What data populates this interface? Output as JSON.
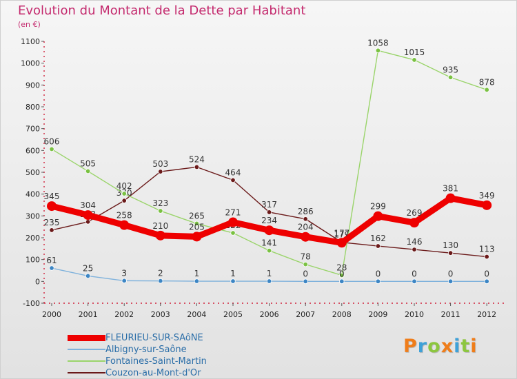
{
  "header": {
    "title": "Evolution du Montant de la Dette par Habitant",
    "subtitle": "(en €)"
  },
  "brand": {
    "text": "Proxiti",
    "letter_colors": [
      "#ef7d1a",
      "#3ea1d8",
      "#8cc63f",
      "#ef7d1a",
      "#3ea1d8",
      "#8cc63f",
      "#ef7d1a"
    ]
  },
  "chart_data": {
    "type": "line",
    "title": "Evolution du Montant de la Dette par Habitant",
    "subtitle": "(en €)",
    "xlabel": "",
    "ylabel": "",
    "x": [
      "2000",
      "2001",
      "2002",
      "2003",
      "2004",
      "2005",
      "2006",
      "2007",
      "2008",
      "2009",
      "2010",
      "2011",
      "2012"
    ],
    "ylim": [
      -100,
      1100
    ],
    "yticks": [
      -100,
      0,
      100,
      200,
      300,
      400,
      500,
      600,
      700,
      800,
      900,
      1000,
      1100
    ],
    "grid": false,
    "legend_position": "bottom-left",
    "series": [
      {
        "name": "Couzon-au-Mont-d'Or",
        "color": "#6b1a1a",
        "marker_color": "#6b1a1a",
        "emphasis": false,
        "values": [
          235,
          273,
          370,
          503,
          524,
          464,
          317,
          286,
          179,
          162,
          146,
          130,
          113
        ],
        "labels": [
          "235",
          "273",
          "370",
          "503",
          "524",
          "464",
          "317",
          "286",
          "179",
          "162",
          "146",
          "130",
          "113"
        ]
      },
      {
        "name": "Fontaines-Saint-Martin",
        "color": "#9ad46a",
        "marker_color": "#7ac142",
        "emphasis": false,
        "values": [
          606,
          505,
          402,
          323,
          265,
          222,
          141,
          78,
          28,
          1058,
          1015,
          935,
          878
        ],
        "labels": [
          "606",
          "505",
          "402",
          "323",
          "265",
          "222",
          "141",
          "78",
          "28",
          "1058",
          "1015",
          "935",
          "878"
        ]
      },
      {
        "name": "Albigny-sur-Saône",
        "color": "#7fb2dc",
        "marker_color": "#3d86c4",
        "emphasis": false,
        "values": [
          61,
          25,
          3,
          2,
          1,
          1,
          1,
          0,
          0,
          0,
          0,
          0,
          0
        ],
        "labels": [
          "61",
          "25",
          "3",
          "2",
          "1",
          "1",
          "1",
          "0",
          "0",
          "0",
          "0",
          "0",
          "0"
        ]
      },
      {
        "name": "FLEURIEU-SUR-SAôNE",
        "color": "#ee0000",
        "marker_color": "#ee0000",
        "emphasis": true,
        "values": [
          345,
          304,
          258,
          210,
          205,
          271,
          234,
          204,
          177,
          299,
          269,
          381,
          349
        ],
        "labels": [
          "345",
          "304",
          "258",
          "210",
          "205",
          "271",
          "234",
          "204",
          "177",
          "299",
          "269",
          "381",
          "349"
        ]
      }
    ],
    "legend_order": [
      "FLEURIEU-SUR-SAôNE",
      "Albigny-sur-Saône",
      "Fontaines-Saint-Martin",
      "Couzon-au-Mont-d'Or"
    ]
  }
}
